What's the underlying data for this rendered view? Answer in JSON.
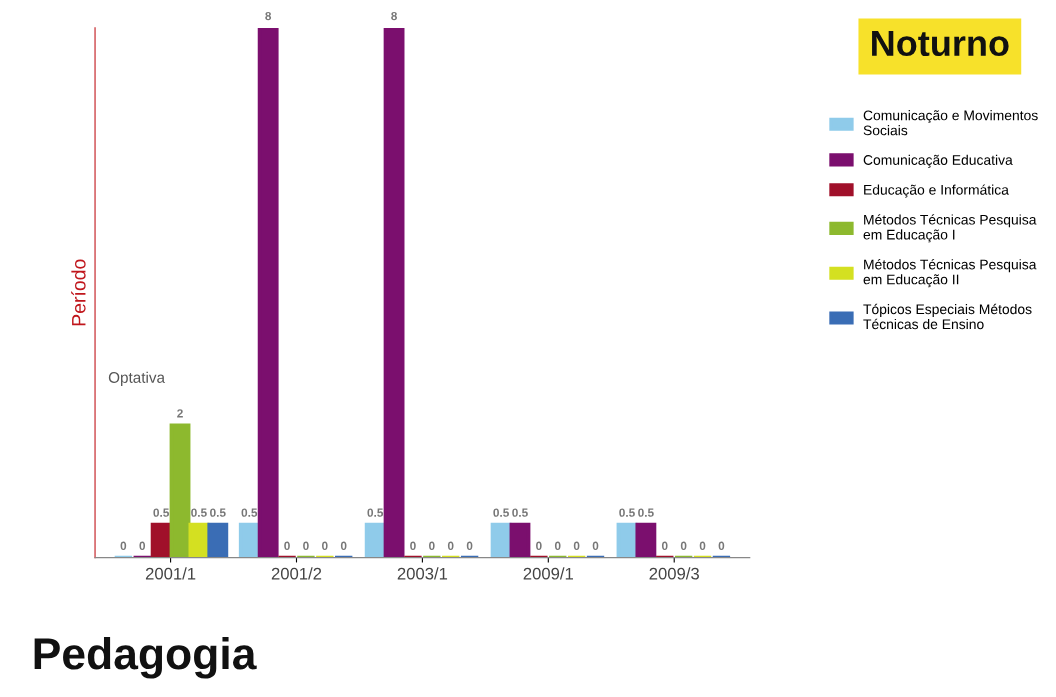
{
  "chart_data": {
    "type": "bar",
    "title": "Pedagogia",
    "subtitle": "Noturno",
    "ylabel": "Período",
    "annotations": [
      "Optativa"
    ],
    "categories": [
      "2001/1",
      "2001/2",
      "2003/1",
      "2009/1",
      "2009/3"
    ],
    "ylim": [
      0,
      8
    ],
    "data_labels": true,
    "legend": "top right",
    "grid": false,
    "series": [
      {
        "name": "Comunicação e Movimentos\nSociais",
        "color": "#8fcbea",
        "values": [
          0,
          0.5,
          0.5,
          0.5,
          0.5
        ]
      },
      {
        "name": "Comunicação Educativa",
        "color": "#7b0f6e",
        "values": [
          0,
          8,
          8,
          0.5,
          0.5
        ]
      },
      {
        "name": "Educação e Informática",
        "color": "#a0102a",
        "values": [
          0.5,
          0,
          0,
          0,
          0
        ]
      },
      {
        "name": "Métodos Técnicas Pesquisa\nem Educação I",
        "color": "#8db92e",
        "values": [
          2,
          0,
          0,
          0,
          0
        ]
      },
      {
        "name": "Métodos Técnicas Pesquisa\nem Educação II",
        "color": "#d4e021",
        "values": [
          0.5,
          0,
          0,
          0,
          0
        ]
      },
      {
        "name": "Tópicos Especiais Métodos\nTécnicas de Ensino",
        "color": "#3a6db5",
        "values": [
          0.5,
          0,
          0,
          0,
          0
        ]
      }
    ]
  }
}
